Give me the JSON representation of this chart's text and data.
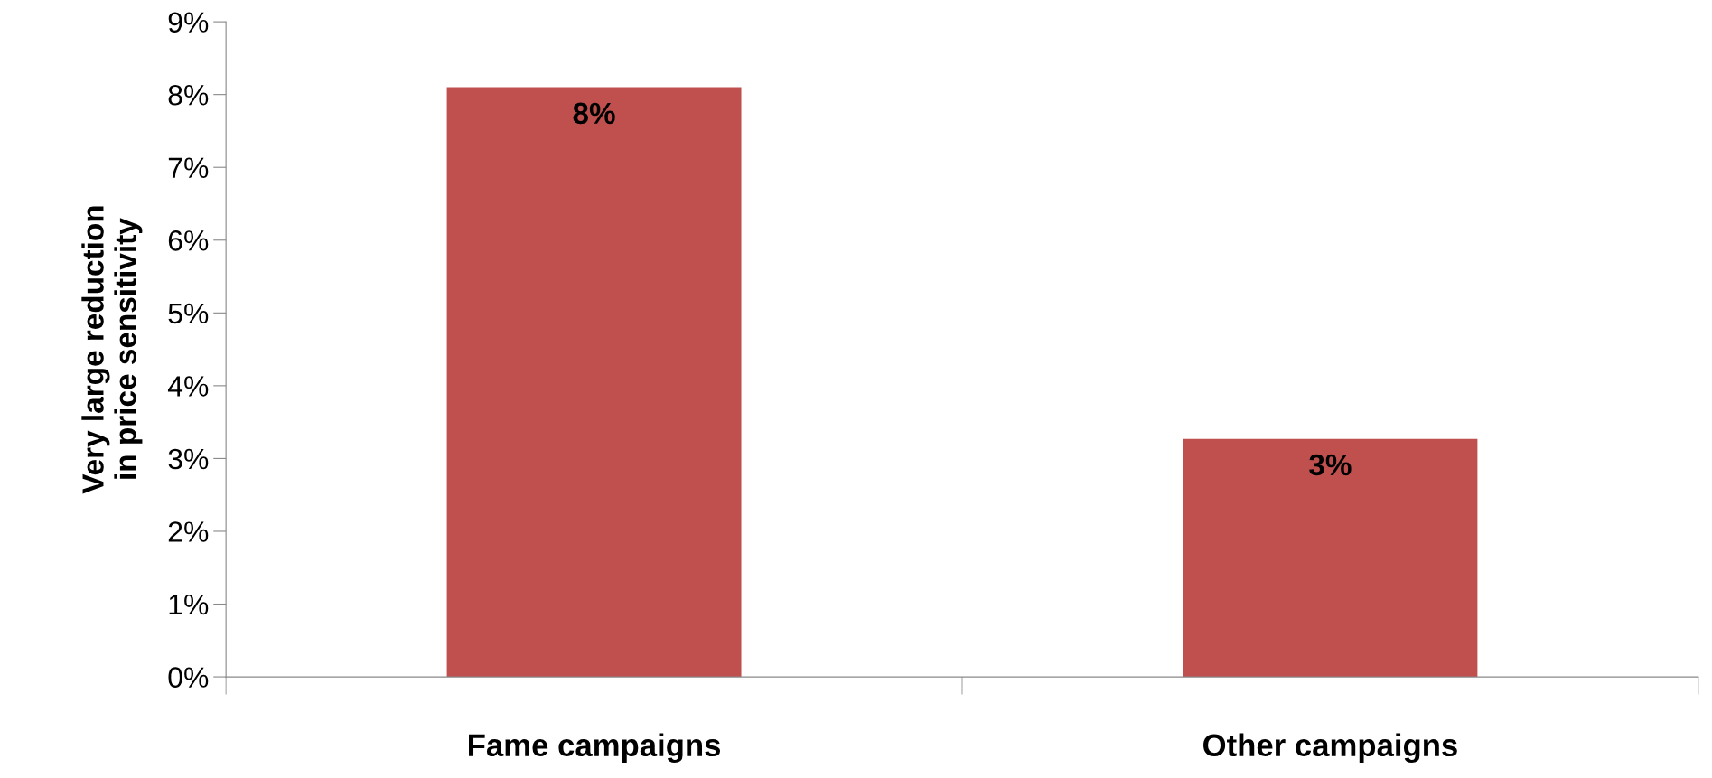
{
  "chart_data": {
    "type": "bar",
    "ylabel": "Very large reduction\nin price sensitivity",
    "categories": [
      "Fame campaigns",
      "Other campaigns"
    ],
    "values": [
      8.1,
      3.27
    ],
    "color": "#c0504d",
    "value_labels": [
      "8%",
      "3%"
    ],
    "ylim": [
      0,
      9
    ],
    "yticks": [
      {
        "value": 0,
        "label": "0%"
      },
      {
        "value": 1,
        "label": "1%"
      },
      {
        "value": 2,
        "label": "2%"
      },
      {
        "value": 3,
        "label": "3%"
      },
      {
        "value": 4,
        "label": "4%"
      },
      {
        "value": 5,
        "label": "5%"
      },
      {
        "value": 6,
        "label": "6%"
      },
      {
        "value": 7,
        "label": "7%"
      },
      {
        "value": 8,
        "label": "8%"
      },
      {
        "value": 9,
        "label": "9%"
      }
    ],
    "grid": false,
    "legend": false
  }
}
